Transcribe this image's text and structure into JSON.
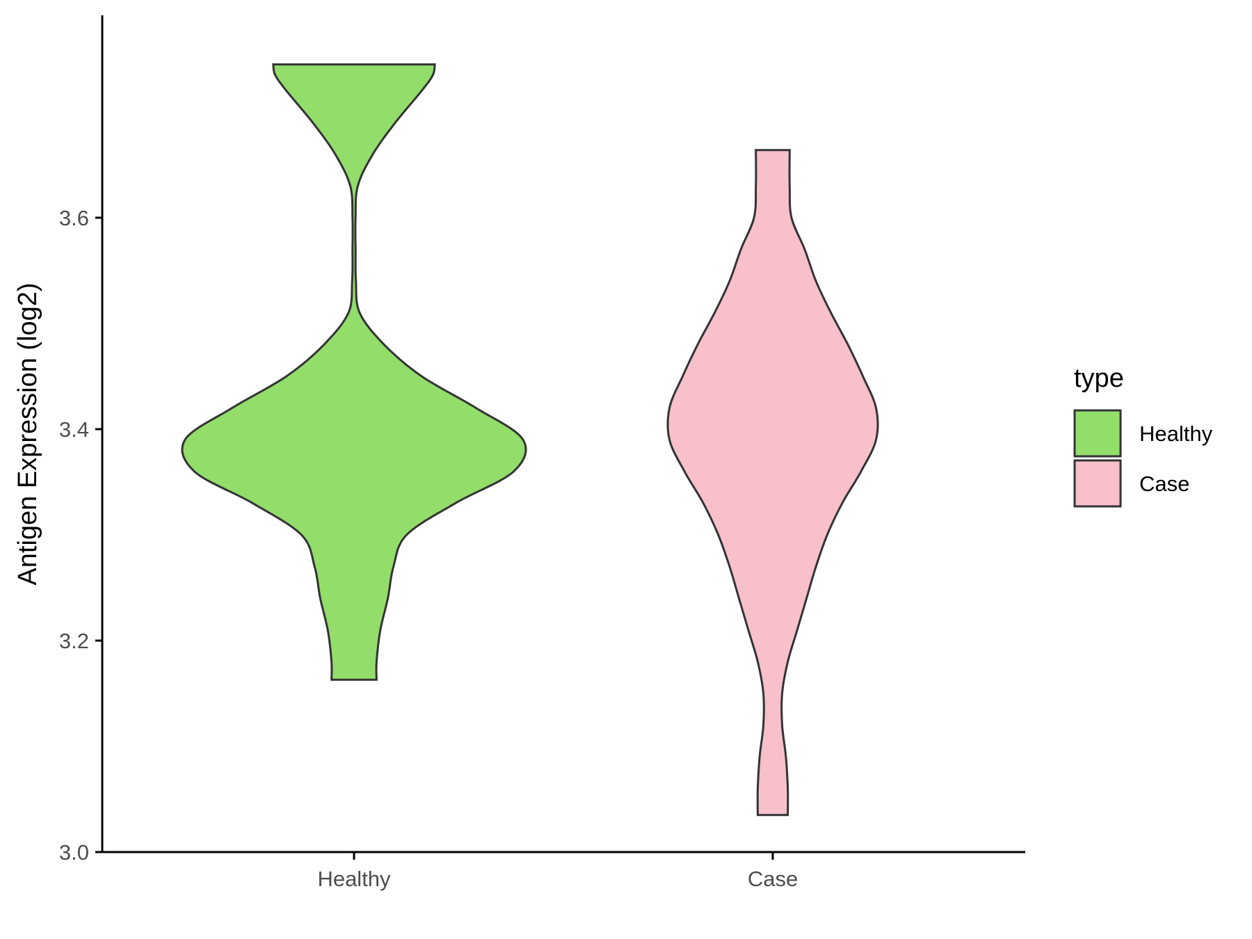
{
  "chart_data": {
    "type": "violin",
    "title": "",
    "xlabel": "",
    "ylabel": "Antigen Expression (log2)",
    "ylim": [
      3.0,
      3.78
    ],
    "yticks": [
      "3.0",
      "3.2",
      "3.4",
      "3.6"
    ],
    "categories": [
      "Healthy",
      "Case"
    ],
    "legend": {
      "title": "type",
      "position": "right",
      "entries": [
        {
          "label": "Healthy",
          "color": "#93dd6b"
        },
        {
          "label": "Case",
          "color": "#f7c0cb"
        }
      ]
    },
    "grid": false,
    "series": [
      {
        "category": "Healthy",
        "color": "#93dd6b",
        "min": 3.163,
        "max": 3.745,
        "density": [
          [
            3.163,
            0.12
          ],
          [
            3.18,
            0.12
          ],
          [
            3.21,
            0.14
          ],
          [
            3.24,
            0.18
          ],
          [
            3.27,
            0.21
          ],
          [
            3.3,
            0.28
          ],
          [
            3.33,
            0.54
          ],
          [
            3.36,
            0.85
          ],
          [
            3.39,
            0.9
          ],
          [
            3.42,
            0.65
          ],
          [
            3.45,
            0.36
          ],
          [
            3.48,
            0.16
          ],
          [
            3.51,
            0.03
          ],
          [
            3.54,
            0.01
          ],
          [
            3.57,
            0.008
          ],
          [
            3.6,
            0.008
          ],
          [
            3.63,
            0.02
          ],
          [
            3.66,
            0.1
          ],
          [
            3.69,
            0.22
          ],
          [
            3.72,
            0.36
          ],
          [
            3.735,
            0.42
          ],
          [
            3.745,
            0.43
          ]
        ]
      },
      {
        "category": "Case",
        "color": "#f7c0cb",
        "min": 3.035,
        "max": 3.664,
        "density": [
          [
            3.035,
            0.08
          ],
          [
            3.06,
            0.08
          ],
          [
            3.09,
            0.07
          ],
          [
            3.12,
            0.05
          ],
          [
            3.15,
            0.05
          ],
          [
            3.18,
            0.08
          ],
          [
            3.21,
            0.13
          ],
          [
            3.24,
            0.18
          ],
          [
            3.27,
            0.23
          ],
          [
            3.3,
            0.29
          ],
          [
            3.33,
            0.37
          ],
          [
            3.36,
            0.47
          ],
          [
            3.39,
            0.55
          ],
          [
            3.42,
            0.55
          ],
          [
            3.45,
            0.48
          ],
          [
            3.48,
            0.4
          ],
          [
            3.51,
            0.31
          ],
          [
            3.54,
            0.23
          ],
          [
            3.57,
            0.17
          ],
          [
            3.6,
            0.1
          ],
          [
            3.63,
            0.09
          ],
          [
            3.664,
            0.09
          ]
        ]
      }
    ]
  }
}
